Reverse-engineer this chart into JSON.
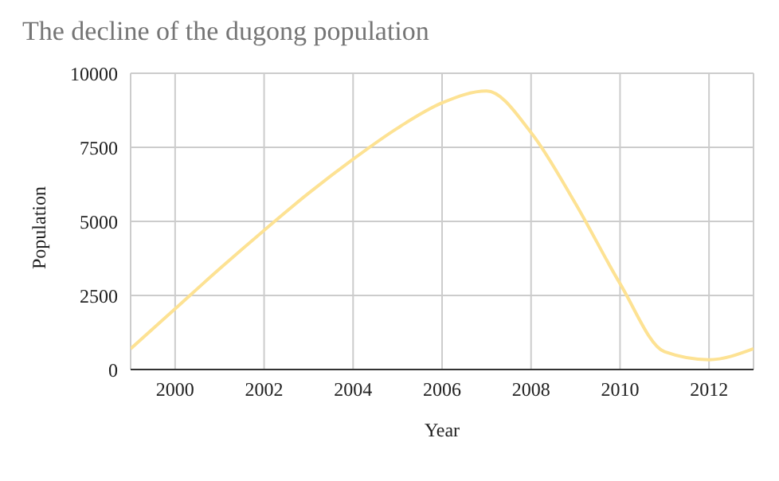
{
  "chart_data": {
    "type": "line",
    "title": "The decline of the dugong population",
    "xlabel": "Year",
    "ylabel": "Population",
    "x": [
      1999,
      2000,
      2001,
      2002,
      2003,
      2004,
      2005,
      2006,
      2007,
      2008,
      2009,
      2010,
      2011,
      2012,
      2013
    ],
    "series": [
      {
        "color": "#fde293",
        "values": [
          700,
          2050,
          3400,
          4700,
          5950,
          7100,
          8150,
          9000,
          9400,
          8000,
          5600,
          2900,
          600,
          330,
          700
        ]
      }
    ],
    "xlim": [
      1999,
      2013
    ],
    "xticks": [
      2000,
      2002,
      2004,
      2006,
      2008,
      2010,
      2012
    ],
    "ylim": [
      0,
      10000
    ],
    "yticks": [
      0,
      2500,
      5000,
      7500,
      10000
    ],
    "grid": true,
    "marker": "none",
    "line_style": "solid"
  }
}
